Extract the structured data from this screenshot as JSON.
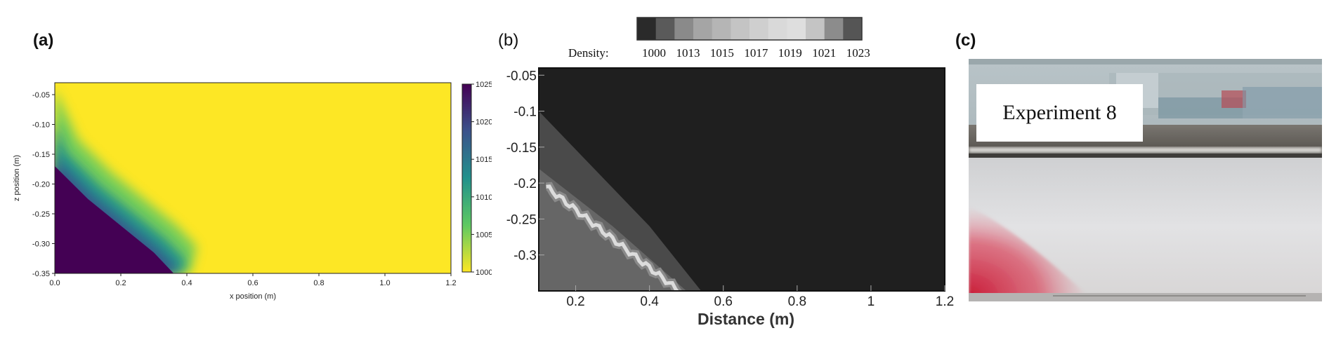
{
  "panels": {
    "a": {
      "label": "(a)"
    },
    "b": {
      "label": "(b)"
    },
    "c": {
      "label": "(c)",
      "caption": "Experiment 8"
    }
  },
  "chart_data": [
    {
      "type": "heatmap",
      "panel": "a",
      "xlabel": "x position (m)",
      "ylabel": "z position (m)",
      "xlim": [
        0.0,
        1.2
      ],
      "ylim": [
        -0.35,
        -0.03
      ],
      "x_ticks": [
        "0.0",
        "0.2",
        "0.4",
        "0.6",
        "0.8",
        "1.0",
        "1.2"
      ],
      "y_ticks": [
        "-0.05",
        "-0.10",
        "-0.15",
        "-0.20",
        "-0.25",
        "-0.30",
        "-0.35"
      ],
      "colorbar_ticks": [
        "1025",
        "1020",
        "1015",
        "1010",
        "1005",
        "1000"
      ],
      "colorbar_range": [
        1000,
        1025
      ],
      "colormap": "viridis",
      "colors": {
        "high": "#440154",
        "mid": "#21918c",
        "low": "#fde725"
      },
      "front_boundary": {
        "x": [
          0.0,
          0.1,
          0.2,
          0.3,
          0.36
        ],
        "z": [
          -0.17,
          -0.225,
          -0.27,
          -0.315,
          -0.35
        ]
      },
      "transition_width_m": 0.05,
      "grid": false
    },
    {
      "type": "heatmap",
      "panel": "b",
      "xlabel": "Distance (m)",
      "ylabel": "",
      "xlim": [
        0.1,
        1.2
      ],
      "ylim": [
        -0.35,
        -0.04
      ],
      "x_ticks": [
        "0.2",
        "0.4",
        "0.6",
        "0.8",
        "1",
        "1.2"
      ],
      "y_ticks": [
        "-0.05",
        "-0.1",
        "-0.15",
        "-0.2",
        "-0.25",
        "-0.3"
      ],
      "legend_title": "Density:",
      "legend_values": [
        "1000",
        "1013",
        "1015",
        "1017",
        "1019",
        "1021",
        "1023"
      ],
      "legend_placement": "top",
      "legend_colors": [
        "#2a2a2a",
        "#5a5a5a",
        "#8a8a8a",
        "#a5a5a5",
        "#b5b5b5",
        "#c4c4c4",
        "#cfcfcf",
        "#d9d9d9",
        "#dedede",
        "#c4c4c4",
        "#8c8c8c",
        "#555555"
      ],
      "background_color": "#1f1f1f",
      "bands": [
        {
          "name": "outer",
          "color": "#4a4a4a",
          "x": [
            0.1,
            0.25,
            0.4,
            0.54
          ],
          "z_top": [
            -0.1,
            -0.18,
            -0.26,
            -0.35
          ]
        },
        {
          "name": "inner",
          "color": "#8a8a8a",
          "x": [
            0.1,
            0.3,
            0.5
          ],
          "z_top": [
            -0.18,
            -0.26,
            -0.35
          ]
        },
        {
          "name": "core",
          "color": "#dcdcdc",
          "x": [
            0.12,
            0.3,
            0.48
          ],
          "z_center": [
            -0.205,
            -0.27,
            -0.35
          ]
        }
      ],
      "grid": false
    }
  ]
}
